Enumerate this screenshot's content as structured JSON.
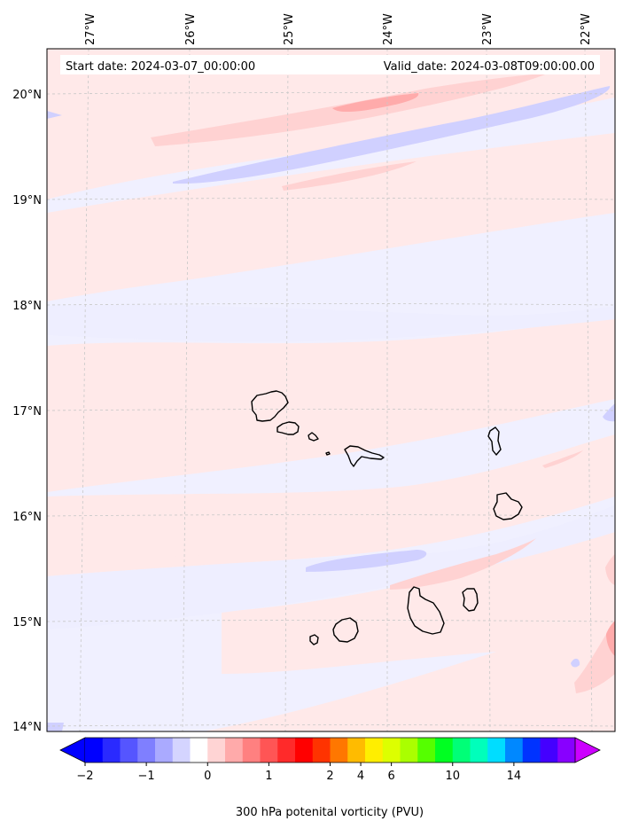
{
  "header": {
    "start_date": "Start date: 2024-03-07_00:00:00",
    "valid_date": "Valid_date: 2024-03-08T09:00:00.00"
  },
  "lon_labels": [
    "27°W",
    "26°W",
    "25°W",
    "24°W",
    "23°W",
    "22°W"
  ],
  "lat_labels": [
    "20°N",
    "19°N",
    "18°N",
    "17°N",
    "16°N",
    "15°N",
    "14°N"
  ],
  "colorbar": {
    "label": "300 hPa potenital vorticity (PVU)",
    "tick_labels": [
      "−2",
      "−1",
      "0",
      "1",
      "2",
      "4",
      "6",
      "10",
      "14"
    ],
    "colors": [
      "#0000ff",
      "#2a2aff",
      "#5555ff",
      "#7f7fff",
      "#aaaaff",
      "#d4d4ff",
      "#ffffff",
      "#ffd4d4",
      "#ffaaaa",
      "#ff8080",
      "#ff5555",
      "#ff2a2a",
      "#ff0000",
      "#ff3300",
      "#ff7700",
      "#ffbb00",
      "#ffee00",
      "#ddff00",
      "#aaff00",
      "#55ff00",
      "#00ff22",
      "#00ff77",
      "#00ffbb",
      "#00ddff",
      "#0088ff",
      "#0033ff",
      "#4400ff",
      "#8800ff"
    ],
    "under_color": "#0000ff",
    "over_color": "#cc00ff"
  },
  "fill_colors": {
    "background": "#f0f0ff",
    "weak_positive": "#ffe9e9",
    "moderate_positive": "#ffd2d2",
    "strong_positive": "#ffabab",
    "weak_negative": "#eeeeff",
    "moderate_negative": "#d0d0ff"
  }
}
